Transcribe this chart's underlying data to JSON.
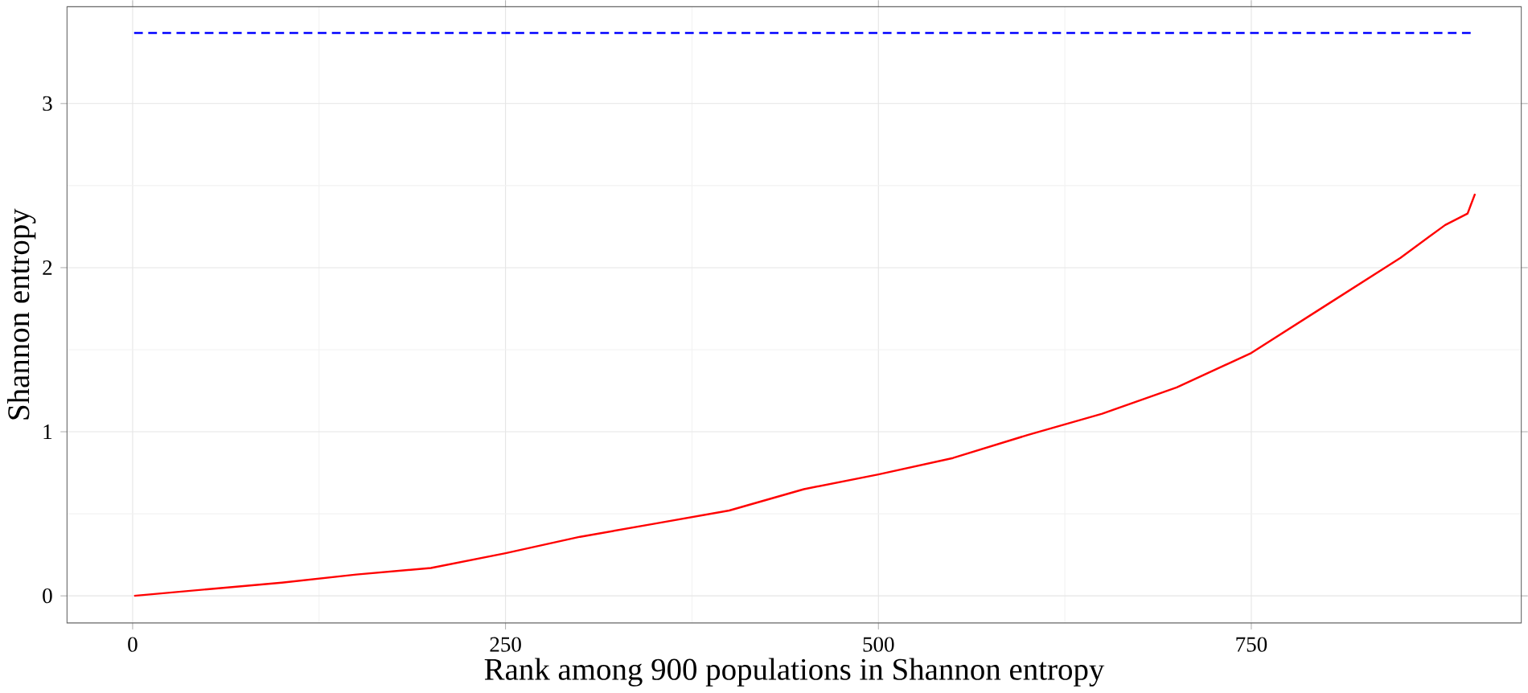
{
  "chart_data": {
    "type": "line",
    "xlabel": "Rank among 900 populations in Shannon entropy",
    "ylabel": "Shannon entropy",
    "xlim": [
      -44,
      931
    ],
    "ylim": [
      -0.165,
      3.59
    ],
    "xticks": [
      0,
      250,
      500,
      750
    ],
    "yticks": [
      0,
      1,
      2,
      3
    ],
    "grid": true,
    "marker": "none",
    "series": [
      {
        "color": "#ff0000",
        "line_style": "solid",
        "x": [
          1,
          50,
          100,
          150,
          200,
          250,
          300,
          350,
          400,
          450,
          500,
          550,
          600,
          650,
          700,
          750,
          800,
          850,
          880,
          895,
          900
        ],
        "values": [
          0.0,
          0.04,
          0.08,
          0.13,
          0.17,
          0.26,
          0.36,
          0.44,
          0.52,
          0.65,
          0.74,
          0.84,
          0.98,
          1.11,
          1.27,
          1.48,
          1.77,
          2.06,
          2.26,
          2.33,
          2.45
        ]
      },
      {
        "color": "#0000ff",
        "line_style": "dashed",
        "x": [
          1,
          900
        ],
        "values": [
          3.43,
          3.43
        ]
      }
    ]
  }
}
